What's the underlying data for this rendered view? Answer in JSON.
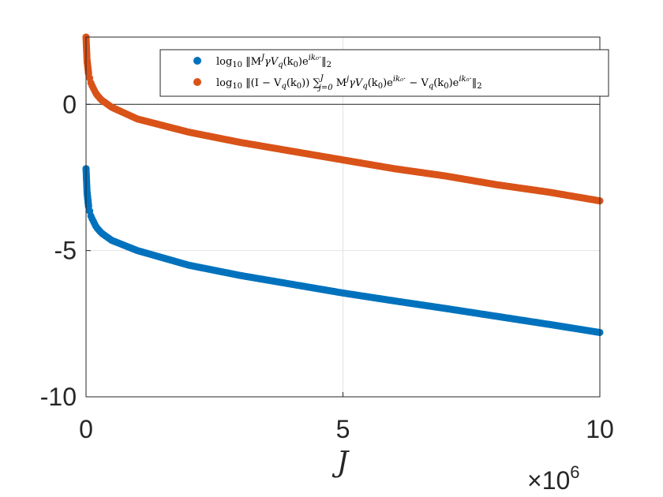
{
  "chart_data": {
    "type": "scatter",
    "title": "",
    "xlabel": "J",
    "ylabel": "",
    "x_multiplier_label": "×10",
    "x_multiplier_exponent": "6",
    "xlim": [
      0,
      10000000
    ],
    "ylim": [
      -10,
      2.3
    ],
    "x_ticks": [
      0,
      5,
      10
    ],
    "y_ticks": [
      0,
      -5,
      -10
    ],
    "x_tick_labels": [
      "0",
      "5",
      "10"
    ],
    "y_tick_labels": [
      "0",
      "-5",
      "-10"
    ],
    "grid": true,
    "legend_position": "top-right",
    "series": [
      {
        "name": "log10 ||M^J γ V_q(k0) e^{ik0·}||_2",
        "color": "#0072BD",
        "x": [
          0,
          20000,
          50000,
          100000,
          200000,
          300000,
          500000,
          1000000,
          2000000,
          3000000,
          4000000,
          5000000,
          6000000,
          7000000,
          8000000,
          9000000,
          10000000
        ],
        "y": [
          -2.2,
          -3.0,
          -3.5,
          -3.85,
          -4.2,
          -4.4,
          -4.65,
          -5.0,
          -5.5,
          -5.85,
          -6.15,
          -6.45,
          -6.72,
          -6.98,
          -7.25,
          -7.52,
          -7.8
        ]
      },
      {
        "name": "log10 ||(I − V_q(k0)) Σ_{j=0}^{J} M^j γ V_q(k0) e^{ik0·} − V_q(k0) e^{ik0·}||_2",
        "color": "#D95319",
        "x": [
          0,
          20000,
          50000,
          100000,
          200000,
          300000,
          500000,
          1000000,
          2000000,
          3000000,
          4000000,
          5000000,
          6000000,
          7000000,
          8000000,
          9000000,
          10000000
        ],
        "y": [
          2.3,
          1.5,
          1.05,
          0.7,
          0.35,
          0.15,
          -0.1,
          -0.5,
          -0.95,
          -1.3,
          -1.6,
          -1.9,
          -2.2,
          -2.45,
          -2.75,
          -3.0,
          -3.3
        ]
      }
    ],
    "legend_entries": [
      "log10 ||M^J γ V_q(k0) e^{ik0·}||_2",
      "log10 ||(I − V_q(k0)) Σ_{j=0}^{J} M^j γ V_q(k0) e^{ik0·} − V_q(k0) e^{ik0·}||_2"
    ]
  }
}
